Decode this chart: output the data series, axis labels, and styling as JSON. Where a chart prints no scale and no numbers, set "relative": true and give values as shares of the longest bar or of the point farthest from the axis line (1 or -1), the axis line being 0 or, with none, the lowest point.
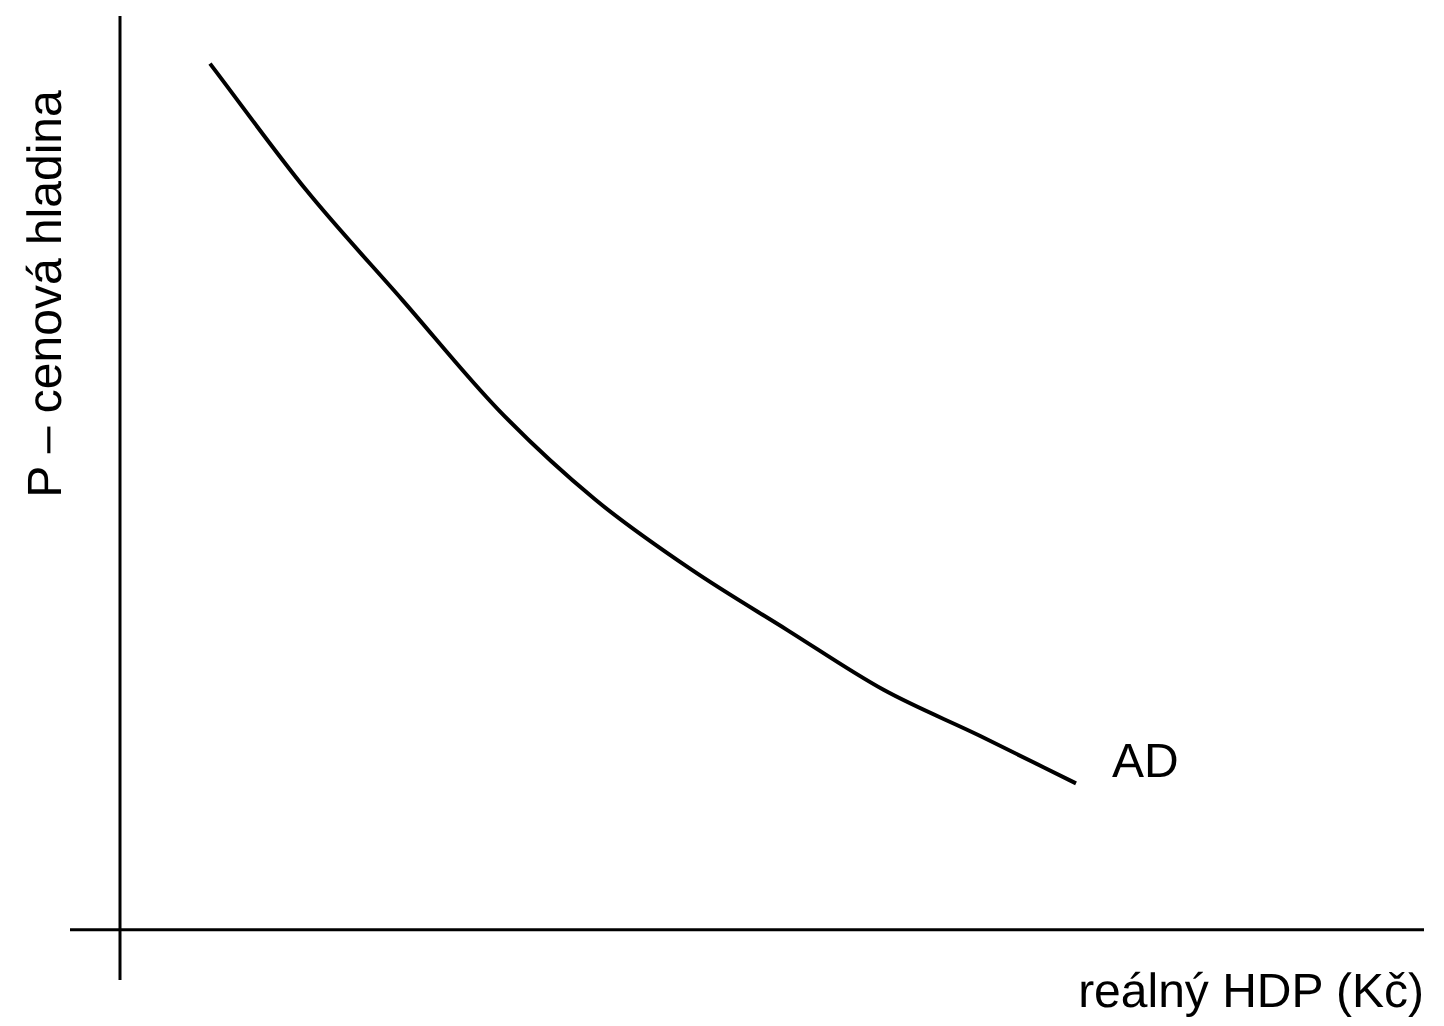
{
  "chart_data": {
    "type": "line",
    "relative": true,
    "xlabel": "reálný HDP (Kč)",
    "ylabel": "P – cenová hladina",
    "legend": false,
    "marker": "none",
    "categories": [
      null,
      null,
      null,
      null,
      null,
      null,
      null,
      null,
      null,
      null
    ],
    "series": [
      {
        "name": "AD",
        "color": "#000000",
        "values": [
          1,
          0.854,
          0.727,
          0.6,
          0.497,
          0.416,
          0.346,
          0.277,
          0.224,
          0.169
        ]
      }
    ]
  }
}
